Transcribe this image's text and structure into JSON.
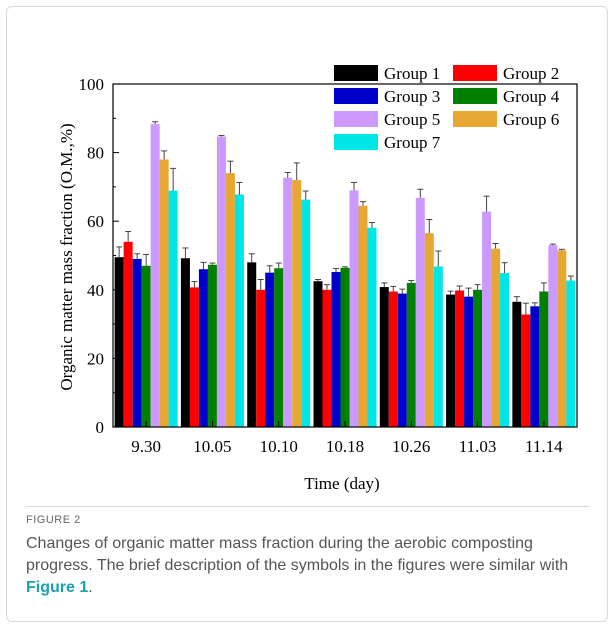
{
  "chart_data": {
    "type": "bar",
    "xlabel": "Time (day)",
    "ylabel": "Organic matter mass fraction (O.M.,%)",
    "ylim": [
      0,
      100
    ],
    "yticks": [
      0,
      20,
      40,
      60,
      80,
      100
    ],
    "categories": [
      "9.30",
      "10.05",
      "10.10",
      "10.18",
      "10.26",
      "11.03",
      "11.14"
    ],
    "legend_position": "top-right",
    "series": [
      {
        "name": "Group 1",
        "color": "#000000",
        "values": [
          49.5,
          49.2,
          48.0,
          42.5,
          40.8,
          38.6,
          36.5
        ],
        "errors": [
          3.0,
          3.0,
          2.5,
          0.5,
          1.2,
          1.0,
          1.5
        ]
      },
      {
        "name": "Group 2",
        "color": "#ff0000",
        "values": [
          54.0,
          40.7,
          40.0,
          40.0,
          39.5,
          39.8,
          32.8
        ],
        "errors": [
          3.0,
          1.7,
          3.0,
          1.5,
          1.5,
          1.3,
          3.3
        ]
      },
      {
        "name": "Group 3",
        "color": "#0000cd",
        "values": [
          49.0,
          46.0,
          45.0,
          45.2,
          38.9,
          38.0,
          35.2
        ],
        "errors": [
          1.5,
          2.0,
          2.0,
          1.0,
          1.3,
          2.5,
          1.0
        ]
      },
      {
        "name": "Group 4",
        "color": "#008000",
        "values": [
          47.0,
          47.3,
          46.3,
          46.4,
          42.0,
          40.0,
          39.5
        ],
        "errors": [
          3.3,
          0.5,
          1.5,
          0.3,
          0.7,
          1.5,
          2.5
        ]
      },
      {
        "name": "Group 5",
        "color": "#cc99ff",
        "values": [
          88.3,
          84.7,
          72.7,
          69.0,
          66.8,
          62.8,
          53.0
        ],
        "errors": [
          0.7,
          0.3,
          1.5,
          2.3,
          2.5,
          4.5,
          0.3
        ]
      },
      {
        "name": "Group 6",
        "color": "#e6a833",
        "values": [
          78.0,
          74.0,
          72.0,
          64.5,
          56.5,
          52.0,
          51.5
        ],
        "errors": [
          2.5,
          3.5,
          5.0,
          1.2,
          4.0,
          1.5,
          0.3
        ]
      },
      {
        "name": "Group 7",
        "color": "#00e5e5",
        "values": [
          68.9,
          67.8,
          66.3,
          58.1,
          46.8,
          44.9,
          42.7
        ],
        "errors": [
          6.5,
          3.5,
          2.5,
          1.5,
          4.5,
          3.0,
          1.3
        ]
      }
    ]
  },
  "figure": {
    "label": "FIGURE 2",
    "caption_before": "Changes of organic matter mass fraction during the aerobic composting progress. The brief description of the symbols in the figures were similar with ",
    "caption_link": "Figure 1",
    "caption_after": "."
  }
}
